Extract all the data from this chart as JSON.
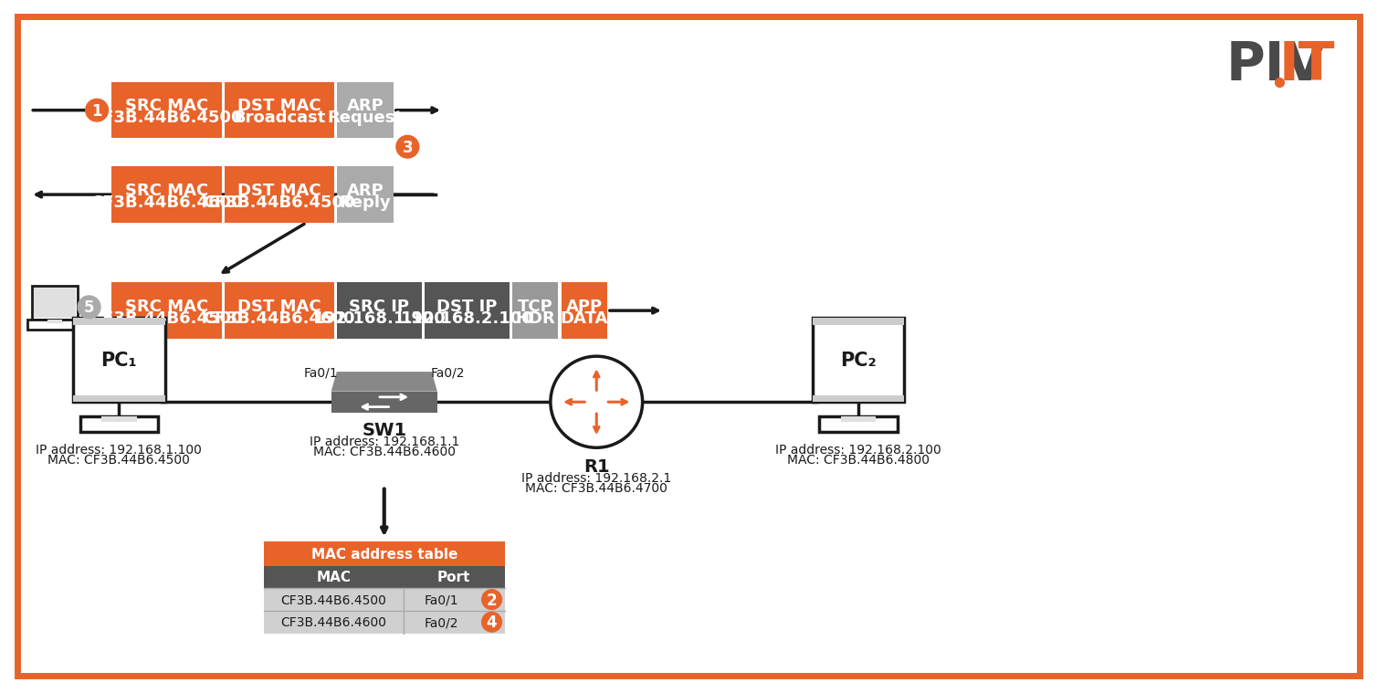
{
  "bg_color": "#ffffff",
  "orange": "#e8632a",
  "dark_gray": "#4a4a4a",
  "switch_gray": "#666666",
  "switch_top_gray": "#888888",
  "arp_gray": "#aaaaaa",
  "ip_dark": "#555555",
  "tcp_gray": "#999999",
  "cell_gray": "#d0d0d0",
  "hdr_dark": "#555555",
  "white": "#ffffff",
  "black": "#1a1a1a",
  "row1_label": [
    "SRC MAC",
    "CF3B.44B6.4500"
  ],
  "row1_dst": [
    "DST MAC",
    "Broadcast"
  ],
  "row1_arp": [
    "ARP",
    "Request"
  ],
  "row2_src": [
    "SRC MAC",
    "CF3B.44B6.4600"
  ],
  "row2_dst": [
    "DST MAC",
    "CF3B.44B6.4500"
  ],
  "row2_arp": [
    "ARP",
    "Reply"
  ],
  "row3_src": [
    "SRC MAC",
    "CF3B.44B6.4500"
  ],
  "row3_dst": [
    "DST MAC",
    "CF3B.44B6.4600"
  ],
  "row3_srcip": [
    "SRC IP",
    "192.168.1.100"
  ],
  "row3_dstip": [
    "DST IP",
    "192.168.2.100"
  ],
  "row3_tcp": [
    "TCP",
    "HDR"
  ],
  "row3_app": [
    "APP",
    "DATA"
  ],
  "pc1_label": "PC₁",
  "pc1_ip": "IP address: 192.168.1.100",
  "pc1_mac": "MAC: CF3B.44B6.4500",
  "pc2_label": "PC₂",
  "pc2_ip": "IP address: 192.168.2.100",
  "pc2_mac": "MAC: CF3B.44B6.4800",
  "sw_label": "SW1",
  "sw_ip": "IP address: 192.168.1.1",
  "sw_mac": "MAC: CF3B.44B6.4600",
  "r1_label": "R1",
  "r1_ip": "IP address: 192.168.2.1",
  "r1_mac": "MAC: CF3B.44B6.4700",
  "fa01": "Fa0/1",
  "fa02": "Fa0/2",
  "tbl_title": "MAC address table",
  "tbl_mac_hdr": "MAC",
  "tbl_port_hdr": "Port",
  "tbl_r1_mac": "CF3B.44B6.4500",
  "tbl_r1_port": "Fa0/1",
  "tbl_r2_mac": "CF3B.44B6.4600",
  "tbl_r2_port": "Fa0/2"
}
